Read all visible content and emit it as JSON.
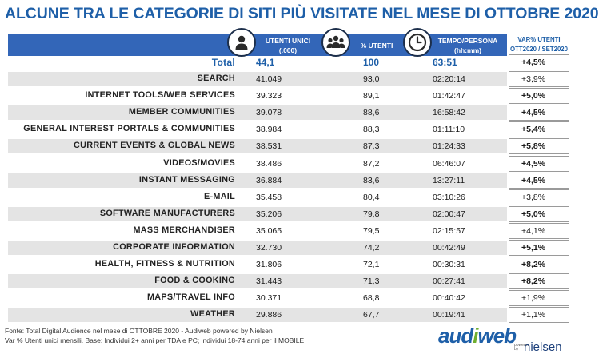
{
  "title": "ALCUNE TRA LE CATEGORIE DI SITI PIÙ VISITATE NEL MESE DI OTTOBRE 2020",
  "headers": {
    "utenti_unici": "UTENTI UNICI",
    "utenti_unici_unit": "(.000)",
    "perc_utenti": "% UTENTI",
    "tempo": "TEMPO/PERSONA",
    "tempo_unit": "(hh:mm)",
    "var_line1": "VAR% UTENTI",
    "var_line2": "OTT2020 / SET2020"
  },
  "icons": {
    "users_icon": "person-icon",
    "perc_icon": "group-icon",
    "time_icon": "clock-icon"
  },
  "total": {
    "label": "Total",
    "utenti": "44,1",
    "perc": "100",
    "tempo": "63:51",
    "var": "+4,5%"
  },
  "rows": [
    {
      "category": "SEARCH",
      "utenti": "41.049",
      "perc": "93,0",
      "tempo": "02:20:14",
      "var": "+3,9%",
      "var_bold": false
    },
    {
      "category": "INTERNET TOOLS/WEB SERVICES",
      "utenti": "39.323",
      "perc": "89,1",
      "tempo": "01:42:47",
      "var": "+5,0%",
      "var_bold": true
    },
    {
      "category": "MEMBER COMMUNITIES",
      "utenti": "39.078",
      "perc": "88,6",
      "tempo": "16:58:42",
      "var": "+4,5%",
      "var_bold": true
    },
    {
      "category": "GENERAL INTEREST PORTALS & COMMUNITIES",
      "utenti": "38.984",
      "perc": "88,3",
      "tempo": "01:11:10",
      "var": "+5,4%",
      "var_bold": true
    },
    {
      "category": "CURRENT EVENTS & GLOBAL NEWS",
      "utenti": "38.531",
      "perc": "87,3",
      "tempo": "01:24:33",
      "var": "+5,8%",
      "var_bold": true
    },
    {
      "category": "VIDEOS/MOVIES",
      "utenti": "38.486",
      "perc": "87,2",
      "tempo": "06:46:07",
      "var": "+4,5%",
      "var_bold": true
    },
    {
      "category": "INSTANT MESSAGING",
      "utenti": "36.884",
      "perc": "83,6",
      "tempo": "13:27:11",
      "var": "+4,5%",
      "var_bold": true
    },
    {
      "category": "E-MAIL",
      "utenti": "35.458",
      "perc": "80,4",
      "tempo": "03:10:26",
      "var": "+3,8%",
      "var_bold": false
    },
    {
      "category": "SOFTWARE MANUFACTURERS",
      "utenti": "35.206",
      "perc": "79,8",
      "tempo": "02:00:47",
      "var": "+5,0%",
      "var_bold": true
    },
    {
      "category": "MASS MERCHANDISER",
      "utenti": "35.065",
      "perc": "79,5",
      "tempo": "02:15:57",
      "var": "+4,1%",
      "var_bold": false
    },
    {
      "category": "CORPORATE INFORMATION",
      "utenti": "32.730",
      "perc": "74,2",
      "tempo": "00:42:49",
      "var": "+5,1%",
      "var_bold": true
    },
    {
      "category": "HEALTH, FITNESS & NUTRITION",
      "utenti": "31.806",
      "perc": "72,1",
      "tempo": "00:30:31",
      "var": "+8,2%",
      "var_bold": true
    },
    {
      "category": "FOOD & COOKING",
      "utenti": "31.443",
      "perc": "71,3",
      "tempo": "00:27:41",
      "var": "+8,2%",
      "var_bold": true
    },
    {
      "category": "MAPS/TRAVEL INFO",
      "utenti": "30.371",
      "perc": "68,8",
      "tempo": "00:40:42",
      "var": "+1,9%",
      "var_bold": false
    },
    {
      "category": "WEATHER",
      "utenti": "29.886",
      "perc": "67,7",
      "tempo": "00:19:41",
      "var": "+1,1%",
      "var_bold": false
    }
  ],
  "footer": {
    "source": "Fonte: Total Digital Audience nel mese di OTTOBRE 2020 - Audiweb powered by Nielsen",
    "note": "Var % Utenti unici mensili. Base: Individui 2+ anni per TDA e PC; individui 18-74 anni per il MOBILE"
  },
  "logo": {
    "aud": "aud",
    "w": "i",
    "web": "web",
    "powered": "powered",
    "by": "by",
    "nielsen": "nielsen"
  },
  "colors": {
    "title": "#1e5fa8",
    "header_bar": "#3366b8",
    "row_shade": "#e4e4e4",
    "logo_green": "#6fae2f"
  }
}
